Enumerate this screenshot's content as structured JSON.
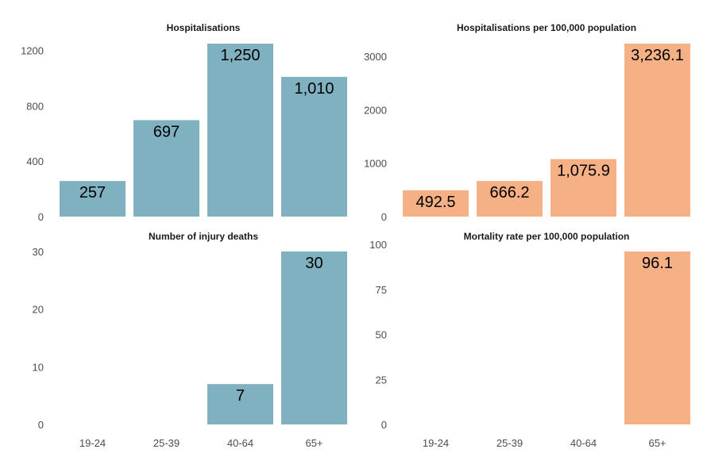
{
  "colors": {
    "teal": "#80b1c0",
    "salmon": "#f6b085"
  },
  "chart_data": [
    {
      "type": "bar",
      "title": "Hospitalisations",
      "categories": [
        "19-24",
        "25-39",
        "40-64",
        "65+"
      ],
      "values": [
        257,
        697,
        1250,
        1010
      ],
      "value_labels": [
        "257",
        "697",
        "1,250",
        "1,010"
      ],
      "ylim": [
        0,
        1250
      ],
      "yticks": [
        0,
        400,
        800,
        1200
      ],
      "color": "#80b1c0",
      "show_x_labels": false
    },
    {
      "type": "bar",
      "title": "Hospitalisations per 100,000 population",
      "categories": [
        "19-24",
        "25-39",
        "40-64",
        "65+"
      ],
      "values": [
        492.5,
        666.2,
        1075.9,
        3236.1
      ],
      "value_labels": [
        "492.5",
        "666.2",
        "1,075.9",
        "3,236.1"
      ],
      "ylim": [
        0,
        3236.1
      ],
      "yticks": [
        0,
        1000,
        2000,
        3000
      ],
      "color": "#f6b085",
      "show_x_labels": false
    },
    {
      "type": "bar",
      "title": "Number of injury deaths",
      "categories": [
        "19-24",
        "25-39",
        "40-64",
        "65+"
      ],
      "values": [
        null,
        null,
        7,
        30
      ],
      "value_labels": [
        "",
        "",
        "7",
        "30"
      ],
      "ylim": [
        0,
        30
      ],
      "yticks": [
        0,
        10,
        20,
        30
      ],
      "color": "#80b1c0",
      "show_x_labels": true
    },
    {
      "type": "bar",
      "title": "Mortality rate per 100,000 population",
      "categories": [
        "19-24",
        "25-39",
        "40-64",
        "65+"
      ],
      "values": [
        null,
        null,
        null,
        96.1
      ],
      "value_labels": [
        "",
        "",
        "",
        "96.1"
      ],
      "ylim": [
        0,
        96.1
      ],
      "yticks": [
        0,
        25,
        50,
        75,
        100
      ],
      "color": "#f6b085",
      "show_x_labels": true
    }
  ]
}
